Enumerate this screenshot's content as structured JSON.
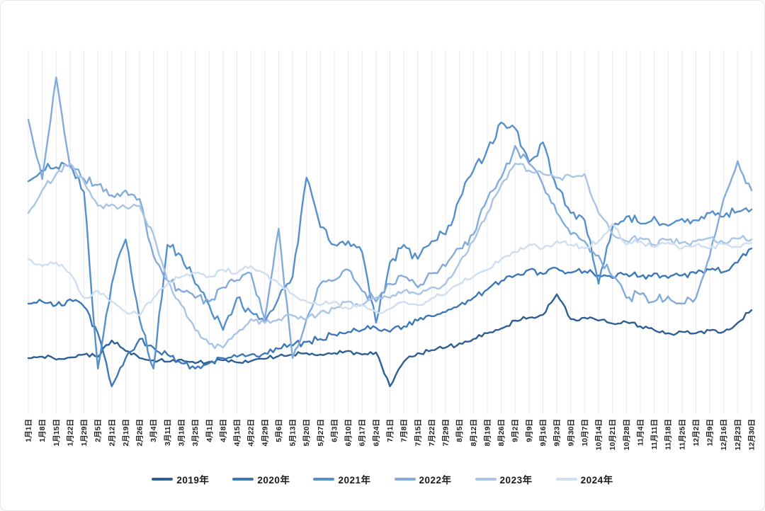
{
  "page": {
    "background": "#ffffff",
    "card_border": "#e9e9e9"
  },
  "chart_data": {
    "type": "line",
    "title": "",
    "xlabel": "",
    "ylabel": "",
    "y_axis": {
      "visible": false,
      "min": 0,
      "max": 100,
      "note": "no y-axis drawn in source; values are relative heights 0-100 within plot area"
    },
    "grid": {
      "vertical": true,
      "horizontal": false,
      "color": "#e9e9e9"
    },
    "legend_position": "bottom",
    "x_labels": [
      "1月1日",
      "1月8日",
      "1月15日",
      "1月22日",
      "1月29日",
      "2月5日",
      "2月12日",
      "2月19日",
      "2月26日",
      "3月4日",
      "3月11日",
      "3月18日",
      "3月25日",
      "4月1日",
      "4月8日",
      "4月15日",
      "4月22日",
      "4月29日",
      "5月6日",
      "5月13日",
      "5月20日",
      "5月27日",
      "6月3日",
      "6月10日",
      "6月17日",
      "6月24日",
      "7月1日",
      "7月8日",
      "7月15日",
      "7月22日",
      "7月29日",
      "8月5日",
      "8月12日",
      "8月19日",
      "8月26日",
      "9月2日",
      "9月9日",
      "9月16日",
      "9月23日",
      "9月30日",
      "10月7日",
      "10月14日",
      "10月21日",
      "10月28日",
      "11月4日",
      "11月11日",
      "11月18日",
      "11月25日",
      "12月2日",
      "12月9日",
      "12月16日",
      "12月23日",
      "12月30日"
    ],
    "series": [
      {
        "name": "2019年",
        "color": "#2e5f94",
        "values": [
          14.7,
          15.1,
          14.3,
          14.9,
          15.7,
          15.1,
          19.6,
          16.7,
          14.7,
          14.1,
          13.7,
          14.3,
          13.3,
          13.7,
          14.1,
          13.5,
          13.9,
          14.5,
          15.3,
          15.7,
          16.1,
          15.7,
          16.1,
          16.7,
          15.7,
          16.3,
          6.9,
          13.7,
          16.1,
          16.9,
          17.6,
          18.8,
          20.0,
          21.6,
          22.9,
          25.1,
          25.9,
          26.7,
          32.4,
          25.5,
          25.9,
          25.1,
          24.3,
          24.7,
          23.5,
          22.5,
          21.6,
          22.0,
          21.6,
          22.4,
          22.0,
          24.5,
          28.0
        ]
      },
      {
        "name": "2020年",
        "color": "#3c78b8",
        "values": [
          29.8,
          30.4,
          29.4,
          31.0,
          29.0,
          21.6,
          6.9,
          14.7,
          20.0,
          17.6,
          15.7,
          13.3,
          11.8,
          13.3,
          14.7,
          15.1,
          15.7,
          16.1,
          17.3,
          18.2,
          19.2,
          20.0,
          21.2,
          22.0,
          22.5,
          23.1,
          22.0,
          23.5,
          25.1,
          26.3,
          27.5,
          29.4,
          31.4,
          33.7,
          36.1,
          37.6,
          39.2,
          38.0,
          39.6,
          38.4,
          38.8,
          37.6,
          36.9,
          38.0,
          37.3,
          38.2,
          36.9,
          37.6,
          38.2,
          39.2,
          38.6,
          41.2,
          45.1
        ]
      },
      {
        "name": "2021年",
        "color": "#5590cc",
        "values": [
          63.7,
          66.7,
          67.6,
          68.2,
          60.8,
          11.8,
          35.3,
          47.6,
          25.5,
          11.8,
          46.1,
          43.1,
          35.3,
          29.4,
          22.5,
          31.4,
          27.5,
          24.5,
          31.4,
          37.3,
          64.7,
          51.0,
          46.1,
          47.1,
          44.1,
          24.5,
          41.2,
          46.1,
          42.2,
          47.1,
          49.0,
          58.8,
          66.7,
          72.5,
          80.0,
          78.4,
          69.0,
          74.5,
          61.8,
          54.9,
          52.9,
          35.3,
          51.0,
          53.9,
          52.0,
          53.9,
          51.4,
          53.3,
          52.9,
          54.9,
          53.9,
          55.3,
          55.9
        ]
      },
      {
        "name": "2022年",
        "color": "#82abdc",
        "values": [
          80.8,
          64.3,
          92.5,
          67.6,
          64.3,
          62.7,
          59.8,
          61.2,
          58.8,
          43.1,
          36.3,
          33.3,
          31.4,
          30.4,
          34.3,
          36.3,
          38.2,
          25.5,
          50.6,
          14.7,
          25.5,
          35.3,
          36.3,
          39.2,
          33.3,
          30.4,
          35.3,
          37.3,
          34.3,
          38.2,
          40.2,
          45.1,
          49.0,
          58.8,
          64.7,
          73.5,
          68.6,
          62.7,
          54.9,
          49.0,
          47.1,
          43.1,
          37.3,
          31.4,
          32.4,
          30.4,
          31.8,
          29.8,
          31.4,
          43.1,
          58.8,
          69.3,
          61.2
        ]
      },
      {
        "name": "2023年",
        "color": "#a9c4e6",
        "values": [
          54.9,
          61.2,
          65.7,
          68.6,
          63.7,
          56.9,
          57.3,
          56.5,
          56.9,
          49.0,
          36.3,
          29.4,
          22.5,
          18.6,
          17.6,
          21.6,
          25.5,
          24.5,
          25.5,
          26.5,
          25.5,
          27.5,
          28.4,
          30.4,
          29.4,
          31.4,
          31.4,
          33.3,
          32.4,
          34.3,
          35.3,
          41.2,
          47.1,
          54.9,
          62.7,
          68.6,
          66.7,
          65.7,
          64.7,
          65.1,
          65.7,
          54.9,
          49.0,
          47.1,
          48.0,
          46.1,
          47.5,
          46.7,
          47.1,
          48.0,
          46.7,
          47.8,
          47.6
        ]
      },
      {
        "name": "2024年",
        "color": "#cedff2",
        "values": [
          42.2,
          40.2,
          41.2,
          38.2,
          31.4,
          33.3,
          30.4,
          27.5,
          26.5,
          31.4,
          35.3,
          37.3,
          38.2,
          37.3,
          39.2,
          38.2,
          40.2,
          38.2,
          35.3,
          32.4,
          30.4,
          29.4,
          30.4,
          28.4,
          29.4,
          27.5,
          28.4,
          30.4,
          29.4,
          31.4,
          32.4,
          35.3,
          37.3,
          39.2,
          42.2,
          44.1,
          46.1,
          45.1,
          47.1,
          46.1,
          45.1,
          47.1,
          52.0,
          46.1,
          47.1,
          45.5,
          46.7,
          45.1,
          46.1,
          45.1,
          46.3,
          45.5,
          46.7
        ]
      }
    ]
  }
}
